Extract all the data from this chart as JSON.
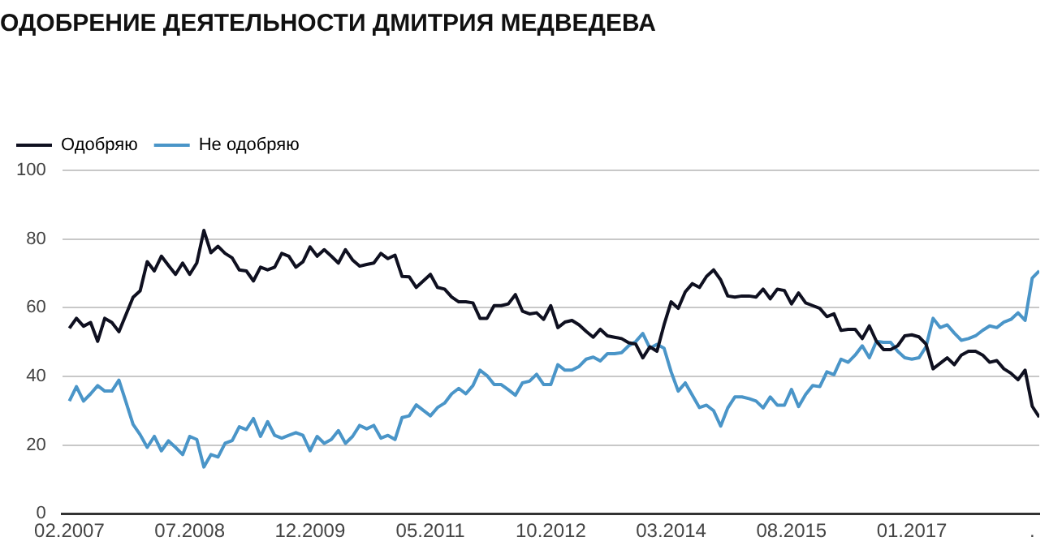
{
  "chart_data": {
    "type": "line",
    "title": "ОДОБРЕНИЕ ДЕЯТЕЛЬНОСТИ ДМИТРИЯ МЕДВЕДЕВА",
    "x": [
      "2007-02",
      "2007-03",
      "2007-04",
      "2007-05",
      "2007-06",
      "2007-07",
      "2007-08",
      "2007-09",
      "2007-10",
      "2007-11",
      "2007-12",
      "2008-01",
      "2008-02",
      "2008-03",
      "2008-04",
      "2008-05",
      "2008-06",
      "2008-07",
      "2008-08",
      "2008-09",
      "2008-10",
      "2008-11",
      "2008-12",
      "2009-01",
      "2009-02",
      "2009-03",
      "2009-04",
      "2009-05",
      "2009-06",
      "2009-07",
      "2009-08",
      "2009-09",
      "2009-10",
      "2009-11",
      "2009-12",
      "2010-01",
      "2010-02",
      "2010-03",
      "2010-04",
      "2010-05",
      "2010-06",
      "2010-07",
      "2010-08",
      "2010-09",
      "2010-10",
      "2010-11",
      "2010-12",
      "2011-01",
      "2011-02",
      "2011-03",
      "2011-04",
      "2011-05",
      "2011-06",
      "2011-07",
      "2011-08",
      "2011-09",
      "2011-10",
      "2011-11",
      "2011-12",
      "2012-01",
      "2012-02",
      "2012-03",
      "2012-04",
      "2012-05",
      "2012-06",
      "2012-07",
      "2012-08",
      "2012-09",
      "2012-10",
      "2012-11",
      "2012-12",
      "2013-01",
      "2013-02",
      "2013-03",
      "2013-04",
      "2013-05",
      "2013-06",
      "2013-07",
      "2013-08",
      "2013-09",
      "2013-10",
      "2013-11",
      "2013-12",
      "2014-01",
      "2014-02",
      "2014-03",
      "2014-04",
      "2014-05",
      "2014-06",
      "2014-07",
      "2014-08",
      "2014-09",
      "2014-10",
      "2014-11",
      "2014-12",
      "2015-01",
      "2015-02",
      "2015-03",
      "2015-04",
      "2015-05",
      "2015-06",
      "2015-07",
      "2015-08",
      "2015-09",
      "2015-10",
      "2015-11",
      "2015-12",
      "2016-01",
      "2016-02",
      "2016-03",
      "2016-04",
      "2016-05",
      "2016-06",
      "2016-07",
      "2016-08",
      "2016-09",
      "2016-10",
      "2016-11",
      "2016-12",
      "2017-01",
      "2017-02",
      "2017-03",
      "2017-04",
      "2017-05",
      "2017-06",
      "2017-07",
      "2017-08",
      "2017-09",
      "2017-10",
      "2017-11",
      "2017-12",
      "2018-01",
      "2018-02",
      "2018-03",
      "2018-04",
      "2018-05",
      "2018-06",
      "2018-07"
    ],
    "series": [
      {
        "name": "Одобряю",
        "color": "#0f1020",
        "values": [
          54,
          56.9,
          54.6,
          55.7,
          50.2,
          56.9,
          55.7,
          53,
          58,
          63,
          64.9,
          73.4,
          70.7,
          75,
          72.3,
          69.7,
          73,
          69.7,
          73,
          82.5,
          76,
          77.9,
          75.8,
          74.5,
          71,
          70.7,
          67.8,
          71.8,
          71,
          71.8,
          75.8,
          75,
          71.8,
          73.4,
          77.7,
          75,
          76.9,
          75,
          73,
          76.9,
          73.9,
          72.1,
          72.6,
          73,
          75.8,
          74.3,
          75.3,
          69.1,
          69,
          65.9,
          67.8,
          69.7,
          65.9,
          65.4,
          63.1,
          61.7,
          61.7,
          61.4,
          56.9,
          56.9,
          60.6,
          60.6,
          61.1,
          63.8,
          59,
          58.2,
          58.5,
          56.6,
          60.6,
          54.2,
          55.8,
          56.3,
          55,
          53.1,
          51.4,
          53.7,
          51.8,
          51.4,
          51,
          49.8,
          49.4,
          45.4,
          48.6,
          47.3,
          55,
          61.7,
          59.8,
          64.6,
          67,
          65.9,
          69.1,
          71,
          68.1,
          63.4,
          63.1,
          63.4,
          63.4,
          63.1,
          65.4,
          62.6,
          65.4,
          65,
          61.1,
          64.3,
          61.4,
          60.6,
          59.8,
          57.4,
          58.2,
          53.4,
          53.7,
          53.7,
          51,
          54.7,
          50.2,
          47.8,
          47.8,
          48.9,
          51.8,
          52.1,
          51.5,
          49.4,
          42.2,
          43.8,
          45.4,
          43.4,
          46.2,
          47.3,
          47.3,
          46.2,
          44.1,
          44.6,
          42.2,
          40.9,
          39,
          41.8,
          31.3,
          28.1
        ]
      },
      {
        "name": "Не одобряю",
        "color": "#4a95c8",
        "values": [
          32.8,
          37,
          32.8,
          34.9,
          37.3,
          35.7,
          35.7,
          38.9,
          32.5,
          26,
          23,
          19.3,
          22.5,
          18.3,
          21.2,
          19.3,
          17.2,
          22.5,
          21.6,
          13.6,
          17.2,
          16.5,
          20.5,
          21.3,
          25.3,
          24.5,
          27.7,
          22.5,
          26.8,
          22.8,
          22,
          22.8,
          23.6,
          22.8,
          18.3,
          22.5,
          20.5,
          21.6,
          24.2,
          20.5,
          22.5,
          25.7,
          24.7,
          25.7,
          22,
          22.8,
          21.6,
          28,
          28.5,
          31.7,
          30.1,
          28.5,
          30.9,
          32.2,
          34.9,
          36.5,
          34.9,
          37.3,
          41.8,
          40.2,
          37.6,
          37.6,
          36.1,
          34.5,
          38.1,
          38.6,
          40.6,
          37.6,
          37.6,
          43.4,
          41.8,
          41.8,
          42.9,
          45,
          45.6,
          44.5,
          46.6,
          46.6,
          46.9,
          48.9,
          50.1,
          52.5,
          48.2,
          49.3,
          48.2,
          41.3,
          35.7,
          38.1,
          34.5,
          30.9,
          31.6,
          30,
          25.5,
          30.8,
          34,
          34,
          33.5,
          32.8,
          30.8,
          34,
          31.6,
          31.6,
          36.2,
          31.2,
          34.7,
          37.3,
          37,
          41.3,
          40.5,
          45,
          44.1,
          46.2,
          48.9,
          45.4,
          50.2,
          49.9,
          49.9,
          47.3,
          45.4,
          45,
          45.4,
          48.6,
          56.9,
          54.2,
          55,
          52.6,
          50.5,
          51,
          51.8,
          53.4,
          54.7,
          54.2,
          55.8,
          56.6,
          58.5,
          56.3,
          68.6,
          70.7
        ]
      }
    ],
    "xlim": [
      "2007-01",
      "2018-07"
    ],
    "xticks": [
      {
        "value": "2007-02",
        "label": "02.2007"
      },
      {
        "value": "2008-07",
        "label": "07.2008"
      },
      {
        "value": "2009-12",
        "label": "12.2009"
      },
      {
        "value": "2011-05",
        "label": "05.2011"
      },
      {
        "value": "2012-10",
        "label": "10.2012"
      },
      {
        "value": "2014-03",
        "label": "03.2014"
      },
      {
        "value": "2015-08",
        "label": "08.2015"
      },
      {
        "value": "2017-01",
        "label": "01.2017"
      },
      {
        "value": "2018-06",
        "label": "."
      }
    ],
    "ylim": [
      0,
      100
    ],
    "yticks": [
      0,
      20,
      40,
      60,
      80,
      100
    ],
    "grid": "y",
    "legend": "top left",
    "marker": "none",
    "line_style": "solid"
  }
}
